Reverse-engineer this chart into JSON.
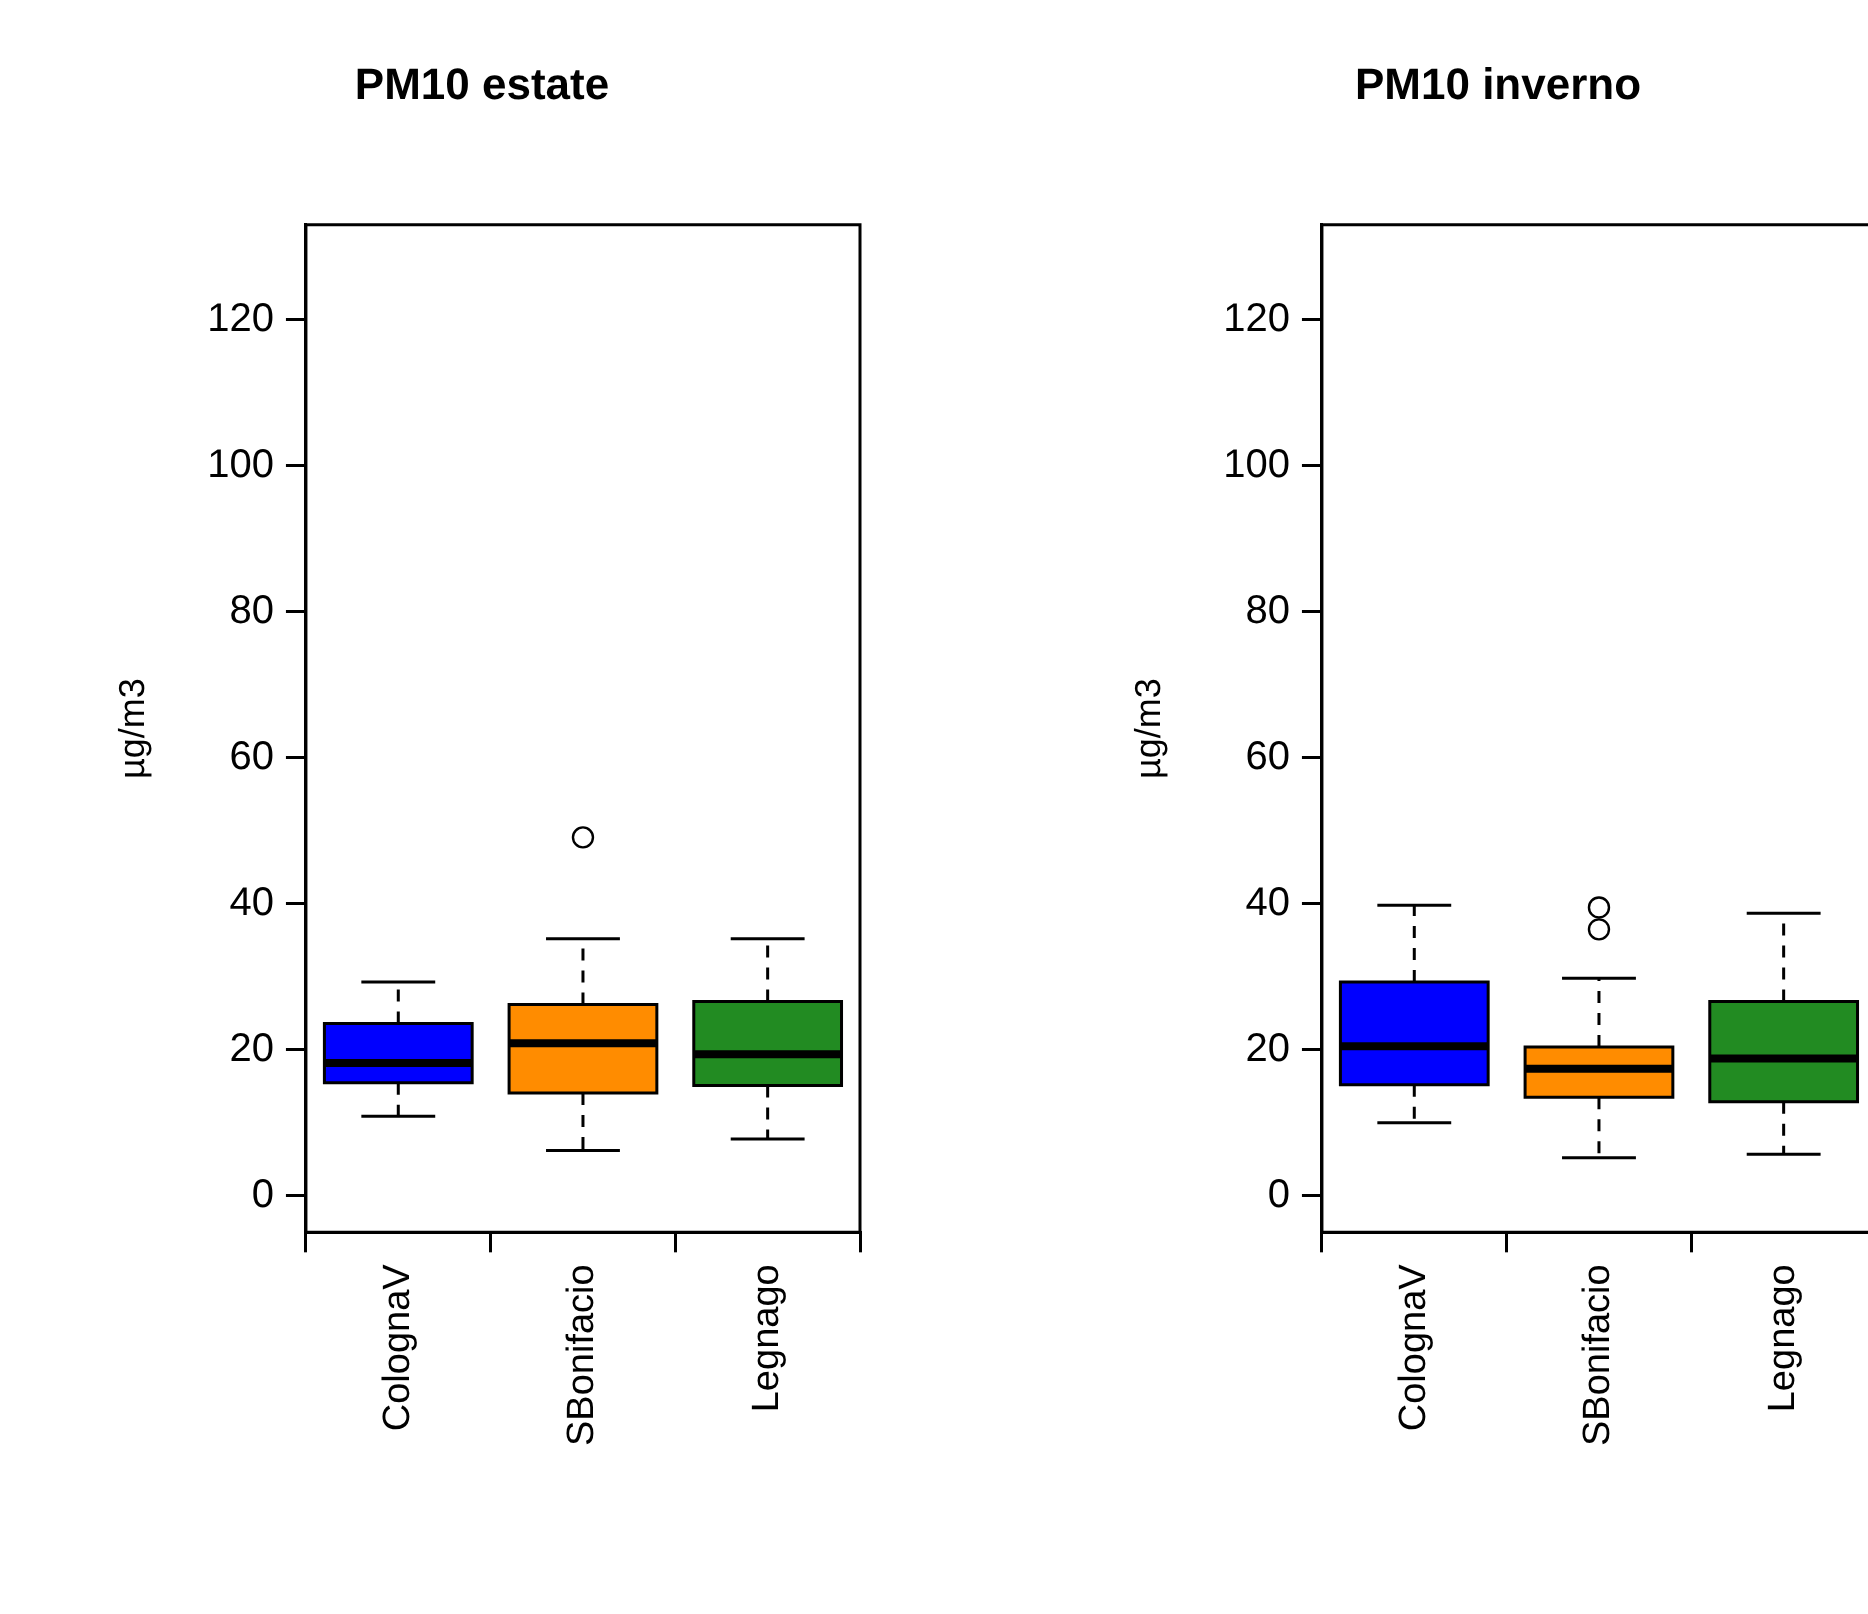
{
  "chart_data": [
    {
      "type": "box",
      "title": "PM10 estate",
      "ylabel": "µg/m3",
      "categories": [
        "ColognaV",
        "SBonifacio",
        "Legnago"
      ],
      "colors": [
        "#0000ff",
        "#ff8c00",
        "#228b22"
      ],
      "boxes": [
        {
          "low": 10.9,
          "q1": 15.5,
          "median": 18.2,
          "q3": 23.6,
          "high": 29.3
        },
        {
          "low": 6.2,
          "q1": 14.1,
          "median": 20.9,
          "q3": 26.2,
          "high": 35.2,
          "outliers": [
            49.1
          ]
        },
        {
          "low": 7.8,
          "q1": 15.1,
          "median": 19.4,
          "q3": 26.6,
          "high": 35.2
        }
      ],
      "ylim": [
        -5,
        133
      ],
      "yticks": [
        0,
        20,
        40,
        60,
        80,
        100,
        120
      ],
      "grid": false,
      "legend": false
    },
    {
      "type": "box",
      "title": "PM10 inverno",
      "ylabel": "µg/m3",
      "categories": [
        "ColognaV",
        "SBonifacio",
        "Legnago"
      ],
      "colors": [
        "#0000ff",
        "#ff8c00",
        "#228b22"
      ],
      "boxes": [
        {
          "low": 10.0,
          "q1": 15.2,
          "median": 20.5,
          "q3": 29.3,
          "high": 39.8
        },
        {
          "low": 5.2,
          "q1": 13.5,
          "median": 17.4,
          "q3": 20.4,
          "high": 29.8,
          "outliers": [
            39.5,
            36.5
          ]
        },
        {
          "low": 5.7,
          "q1": 12.9,
          "median": 18.8,
          "q3": 26.6,
          "high": 38.7
        }
      ],
      "ylim": [
        -5,
        133
      ],
      "yticks": [
        0,
        20,
        40,
        60,
        80,
        100,
        120
      ],
      "grid": false,
      "legend": false
    }
  ]
}
